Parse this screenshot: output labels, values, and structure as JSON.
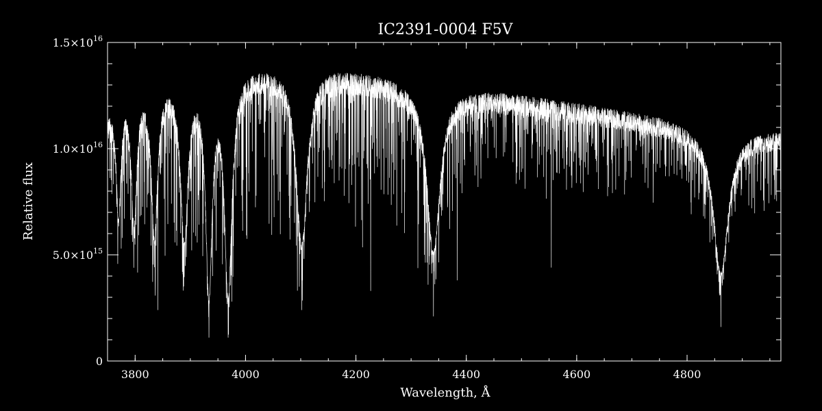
{
  "chart_data": {
    "type": "line",
    "title": "IC2391-0004  F5V",
    "xlabel": "Wavelength, Å",
    "ylabel": "Relative flux",
    "xlim": [
      3750,
      4970
    ],
    "ylim": [
      0,
      1.5e+16
    ],
    "x_ticks": [
      {
        "value": 3800,
        "label": "3800"
      },
      {
        "value": 4000,
        "label": "4000"
      },
      {
        "value": 4200,
        "label": "4200"
      },
      {
        "value": 4400,
        "label": "4400"
      },
      {
        "value": 4600,
        "label": "4600"
      },
      {
        "value": 4800,
        "label": "4800"
      }
    ],
    "y_ticks": [
      {
        "value": 0,
        "mantissa": "0",
        "exponent": ""
      },
      {
        "value": 5000000000000000.0,
        "mantissa": "5.0×10",
        "exponent": "15"
      },
      {
        "value": 1e+16,
        "mantissa": "1.0×10",
        "exponent": "16"
      },
      {
        "value": 1.5e+16,
        "mantissa": "1.5×10",
        "exponent": "16"
      }
    ],
    "x_minor_step": 50,
    "y_minor_step": 1000000000000000.0,
    "grid": false,
    "colors": {
      "background": "#000000",
      "foreground": "#ffffff"
    },
    "series": [
      {
        "continuum": [
          [
            3750,
            1.2e+16
          ],
          [
            3780,
            1.32e+16
          ],
          [
            3810,
            1.35e+16
          ],
          [
            3850,
            1.37e+16
          ],
          [
            3900,
            1.38e+16
          ],
          [
            3950,
            1.4e+16
          ],
          [
            4000,
            1.41e+16
          ],
          [
            4050,
            1.41e+16
          ],
          [
            4100,
            1.41e+16
          ],
          [
            4150,
            1.4e+16
          ],
          [
            4200,
            1.38e+16
          ],
          [
            4250,
            1.36e+16
          ],
          [
            4300,
            1.33e+16
          ],
          [
            4350,
            1.3e+16
          ],
          [
            4400,
            1.29e+16
          ],
          [
            4450,
            1.28e+16
          ],
          [
            4500,
            1.26e+16
          ],
          [
            4550,
            1.24e+16
          ],
          [
            4600,
            1.22e+16
          ],
          [
            4650,
            1.2e+16
          ],
          [
            4700,
            1.18e+16
          ],
          [
            4750,
            1.16e+16
          ],
          [
            4800,
            1.13e+16
          ],
          [
            4850,
            1.11e+16
          ],
          [
            4900,
            1.1e+16
          ],
          [
            4970,
            1.09e+16
          ]
        ],
        "broad_lines": [
          {
            "center": 3770,
            "depth": 0.45,
            "width": 5
          },
          {
            "center": 3798,
            "depth": 0.5,
            "width": 6
          },
          {
            "center": 3835,
            "depth": 0.55,
            "width": 7
          },
          {
            "center": 3889,
            "depth": 0.58,
            "width": 8
          },
          {
            "center": 3933.7,
            "depth": 0.78,
            "width": 7
          },
          {
            "center": 3968.5,
            "depth": 0.78,
            "width": 8
          },
          {
            "center": 4101.7,
            "depth": 0.6,
            "width": 12
          },
          {
            "center": 4340.5,
            "depth": 0.6,
            "width": 14
          },
          {
            "center": 4861.3,
            "depth": 0.62,
            "width": 16
          }
        ],
        "deep_lines": [
          {
            "x": 3933.7,
            "y": 1100000000000000.0
          },
          {
            "x": 3968.5,
            "y": 1100000000000000.0
          },
          {
            "x": 3841,
            "y": 2400000000000000.0
          },
          {
            "x": 4101.7,
            "y": 2400000000000000.0
          },
          {
            "x": 4226.7,
            "y": 3300000000000000.0
          },
          {
            "x": 4340.5,
            "y": 2100000000000000.0
          },
          {
            "x": 4383.5,
            "y": 3800000000000000.0
          },
          {
            "x": 4554,
            "y": 4400000000000000.0
          },
          {
            "x": 4861.3,
            "y": 1600000000000000.0
          }
        ]
      }
    ]
  }
}
